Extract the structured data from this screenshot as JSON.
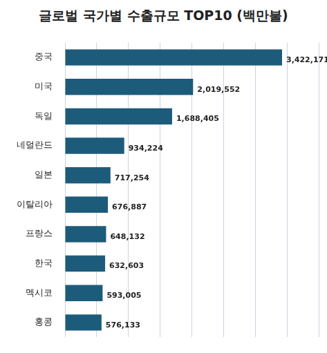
{
  "chart_data": {
    "type": "bar",
    "orientation": "horizontal",
    "title": "글로벌 국가별 수출규모 TOP10 (백만불)",
    "categories": [
      "중국",
      "미국",
      "독일",
      "네덜란드",
      "일본",
      "이탈리아",
      "프랑스",
      "한국",
      "멕시코",
      "홍콩"
    ],
    "values": [
      3422171,
      2019552,
      1688405,
      934224,
      717254,
      676887,
      648132,
      632603,
      593005,
      576133
    ],
    "value_labels": [
      "3,422,171",
      "2,019,552",
      "1,688,405",
      "934,224",
      "717,254",
      "676,887",
      "648,132",
      "632,603",
      "593,005",
      "576,133"
    ],
    "color": "#1d5b7a",
    "xlim": [
      0,
      4000000
    ],
    "xticks": [
      0,
      500000,
      1000000,
      1500000,
      2000000,
      2500000,
      3000000,
      3500000,
      4000000
    ],
    "grid": true,
    "data_labels": true,
    "tick_labels": "y"
  }
}
